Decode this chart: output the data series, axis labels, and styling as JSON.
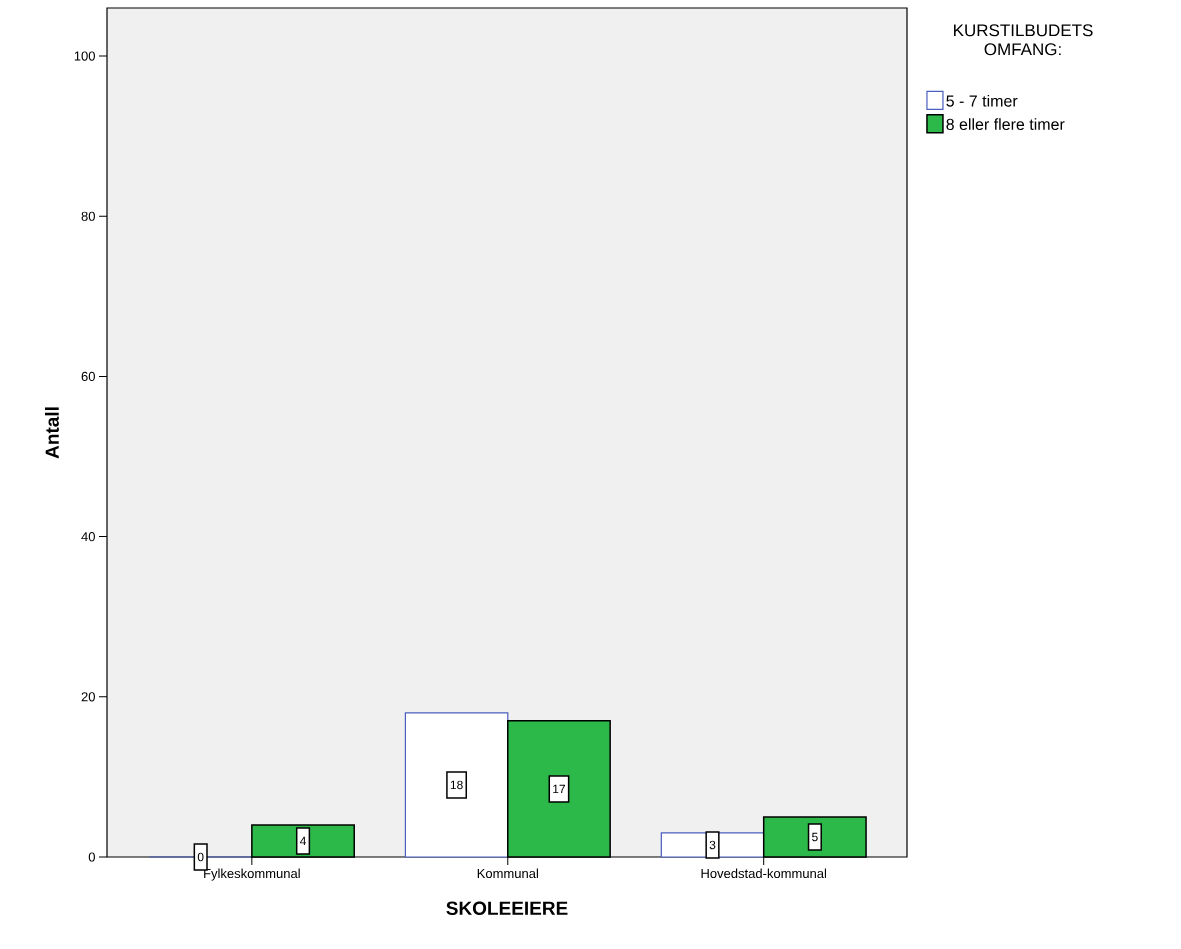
{
  "chart_data": {
    "type": "bar",
    "xlabel": "SKOLEEIERE",
    "ylabel": "Antall",
    "legend_title": "KURSTILBUDETS OMFANG:",
    "categories": [
      "Fylkeskommunal",
      "Kommunal",
      "Hovedstad-kommunal"
    ],
    "series": [
      {
        "name": "5 - 7 timer",
        "color": "#4a5fbf",
        "values": [
          0,
          18,
          3
        ]
      },
      {
        "name": "8 eller flere timer",
        "color": "#2db84a",
        "values": [
          4,
          17,
          5
        ]
      }
    ],
    "ylim": [
      0,
      106
    ],
    "yticks": [
      0,
      20,
      40,
      60,
      80,
      100
    ],
    "grid": false,
    "legend": "top right",
    "data_labels": true
  }
}
